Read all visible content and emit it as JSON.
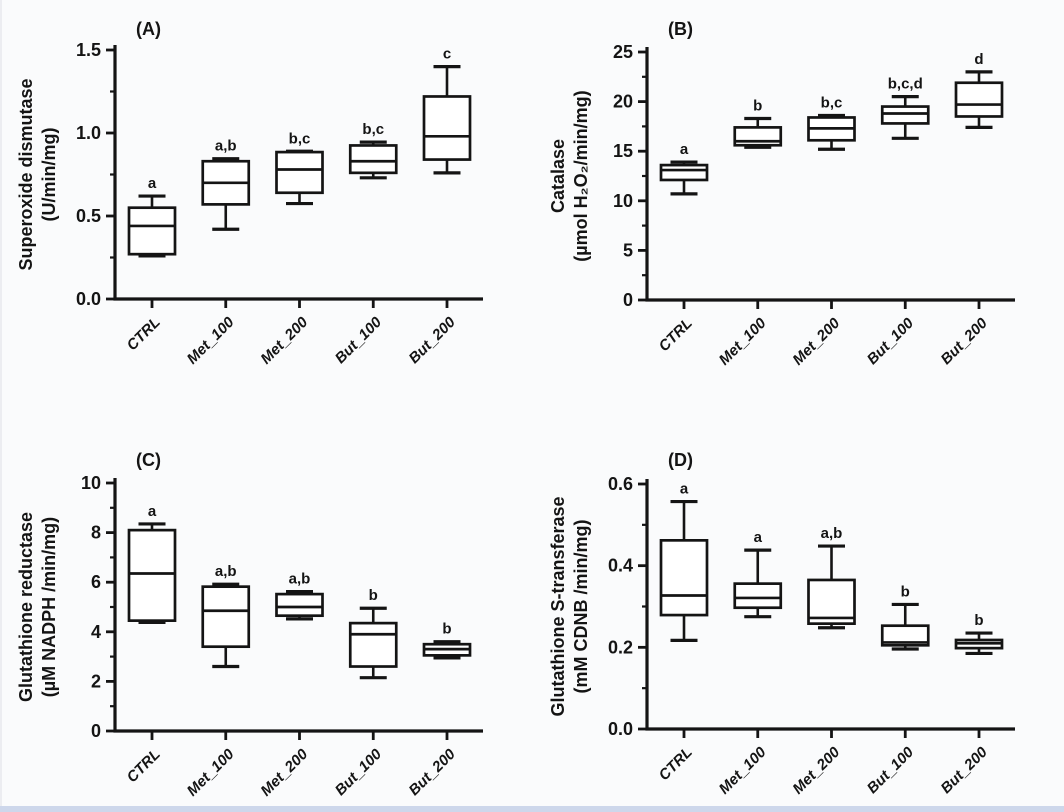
{
  "figure": {
    "background": "#fafbfc",
    "ink_color": "#141414",
    "bottom_border_color": "#cdd7eb"
  },
  "chart_data": [
    {
      "type": "box",
      "panel": "(A)",
      "ylabel_lines": [
        "Superoxide dismutase",
        "(U/min/mg)"
      ],
      "ylim": [
        0,
        1.5
      ],
      "yticks": [
        0,
        0.5,
        1.0,
        1.5
      ],
      "ytick_labels": [
        "0.0",
        "0.5",
        "1.0",
        "1.5"
      ],
      "grid": false,
      "legend": "none",
      "categories": [
        "CTRL",
        "Met_100",
        "Met_200",
        "But_100",
        "But_200"
      ],
      "boxes": [
        {
          "whislo": 0.26,
          "q1": 0.27,
          "med": 0.44,
          "q3": 0.55,
          "whishi": 0.62,
          "sig": "a"
        },
        {
          "whislo": 0.42,
          "q1": 0.57,
          "med": 0.7,
          "q3": 0.83,
          "whishi": 0.845,
          "sig": "a,b"
        },
        {
          "whislo": 0.575,
          "q1": 0.64,
          "med": 0.78,
          "q3": 0.885,
          "whishi": 0.89,
          "sig": "b,c"
        },
        {
          "whislo": 0.73,
          "q1": 0.76,
          "med": 0.83,
          "q3": 0.925,
          "whishi": 0.945,
          "sig": "b,c"
        },
        {
          "whislo": 0.76,
          "q1": 0.84,
          "med": 0.98,
          "q3": 1.22,
          "whishi": 1.4,
          "sig": "c"
        }
      ]
    },
    {
      "type": "box",
      "panel": "(B)",
      "ylabel_lines": [
        "Catalase",
        "(µmol H₂O₂/min/mg)"
      ],
      "ylim": [
        0,
        25
      ],
      "yticks": [
        0,
        5,
        10,
        15,
        20,
        25
      ],
      "ytick_labels": [
        "0",
        "5",
        "10",
        "15",
        "20",
        "25"
      ],
      "grid": false,
      "legend": "none",
      "categories": [
        "CTRL",
        "Met_100",
        "Met_200",
        "But_100",
        "But_200"
      ],
      "boxes": [
        {
          "whislo": 10.7,
          "q1": 12.1,
          "med": 13.1,
          "q3": 13.6,
          "whishi": 13.9,
          "sig": "a"
        },
        {
          "whislo": 15.4,
          "q1": 15.6,
          "med": 16.0,
          "q3": 17.4,
          "whishi": 18.3,
          "sig": "b"
        },
        {
          "whislo": 15.2,
          "q1": 16.1,
          "med": 17.3,
          "q3": 18.4,
          "whishi": 18.6,
          "sig": "b,c"
        },
        {
          "whislo": 16.3,
          "q1": 17.8,
          "med": 18.8,
          "q3": 19.5,
          "whishi": 20.5,
          "sig": "b,c,d"
        },
        {
          "whislo": 17.4,
          "q1": 18.5,
          "med": 19.7,
          "q3": 21.9,
          "whishi": 23.0,
          "sig": "d"
        }
      ]
    },
    {
      "type": "box",
      "panel": "(C)",
      "ylabel_lines": [
        "Glutathione reductase",
        "(µM NADPH /min/mg)"
      ],
      "ylim": [
        0,
        10
      ],
      "yticks": [
        0,
        2,
        4,
        6,
        8,
        10
      ],
      "ytick_labels": [
        "0",
        "2",
        "4",
        "6",
        "8",
        "10"
      ],
      "grid": false,
      "legend": "none",
      "categories": [
        "CTRL",
        "Met_100",
        "Met_200",
        "But_100",
        "But_200"
      ],
      "boxes": [
        {
          "whislo": 4.38,
          "q1": 4.45,
          "med": 6.35,
          "q3": 8.1,
          "whishi": 8.35,
          "sig": "a"
        },
        {
          "whislo": 2.6,
          "q1": 3.4,
          "med": 4.85,
          "q3": 5.82,
          "whishi": 5.92,
          "sig": "a,b"
        },
        {
          "whislo": 4.52,
          "q1": 4.65,
          "med": 5.0,
          "q3": 5.52,
          "whishi": 5.62,
          "sig": "a,b"
        },
        {
          "whislo": 2.15,
          "q1": 2.6,
          "med": 3.9,
          "q3": 4.35,
          "whishi": 4.95,
          "sig": "b"
        },
        {
          "whislo": 2.95,
          "q1": 3.05,
          "med": 3.3,
          "q3": 3.5,
          "whishi": 3.6,
          "sig": "b"
        }
      ]
    },
    {
      "type": "box",
      "panel": "(D)",
      "ylabel_lines": [
        "Glutathione S-transferase",
        "(mM CDNB /min/mg)"
      ],
      "ylim": [
        0,
        0.6
      ],
      "yticks": [
        0,
        0.2,
        0.4,
        0.6
      ],
      "ytick_labels": [
        "0.0",
        "0.2",
        "0.4",
        "0.6"
      ],
      "grid": false,
      "legend": "none",
      "categories": [
        "CTRL",
        "Met_100",
        "Met_200",
        "But_100",
        "But_200"
      ],
      "boxes": [
        {
          "whislo": 0.217,
          "q1": 0.279,
          "med": 0.327,
          "q3": 0.462,
          "whishi": 0.557,
          "sig": "a"
        },
        {
          "whislo": 0.275,
          "q1": 0.297,
          "med": 0.321,
          "q3": 0.356,
          "whishi": 0.438,
          "sig": "a"
        },
        {
          "whislo": 0.248,
          "q1": 0.258,
          "med": 0.272,
          "q3": 0.365,
          "whishi": 0.448,
          "sig": "a,b"
        },
        {
          "whislo": 0.196,
          "q1": 0.205,
          "med": 0.212,
          "q3": 0.253,
          "whishi": 0.305,
          "sig": "b"
        },
        {
          "whislo": 0.185,
          "q1": 0.198,
          "med": 0.21,
          "q3": 0.218,
          "whishi": 0.235,
          "sig": "b"
        }
      ]
    }
  ]
}
